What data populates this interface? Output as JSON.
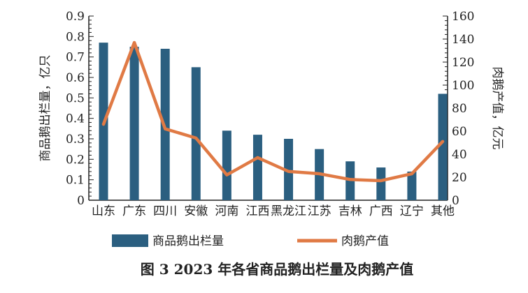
{
  "chart_data": {
    "type": "bar+line",
    "title": "图 3  2023 年各省商品鹅出栏量及肉鹅产值",
    "categories": [
      "山东",
      "广东",
      "四川",
      "安徽",
      "河南",
      "江西",
      "黑龙江",
      "江苏",
      "吉林",
      "广西",
      "辽宁",
      "其他"
    ],
    "series": [
      {
        "name": "商品鹅出栏量",
        "type": "bar",
        "axis": "left",
        "color": "#2b5f80",
        "values": [
          0.77,
          0.75,
          0.74,
          0.65,
          0.34,
          0.32,
          0.3,
          0.25,
          0.19,
          0.16,
          0.14,
          0.52
        ]
      },
      {
        "name": "肉鹅产值",
        "type": "line",
        "axis": "right",
        "color": "#e07a45",
        "values": [
          66,
          137,
          62,
          54,
          22,
          37,
          25,
          23,
          18,
          17,
          23,
          51
        ]
      }
    ],
    "ylabel": "商品鹅出栏量，亿只",
    "y2label": "肉鹅产值，亿元",
    "ylim": [
      0,
      0.9
    ],
    "y2lim": [
      0,
      160
    ],
    "yticks": [
      "0",
      "0.1",
      "0.2",
      "0.3",
      "0.4",
      "0.5",
      "0.6",
      "0.7",
      "0.8",
      "0.9"
    ],
    "y2ticks": [
      "0",
      "20",
      "40",
      "60",
      "80",
      "100",
      "120",
      "140",
      "160"
    ],
    "grid": false,
    "legend": "bottom"
  }
}
